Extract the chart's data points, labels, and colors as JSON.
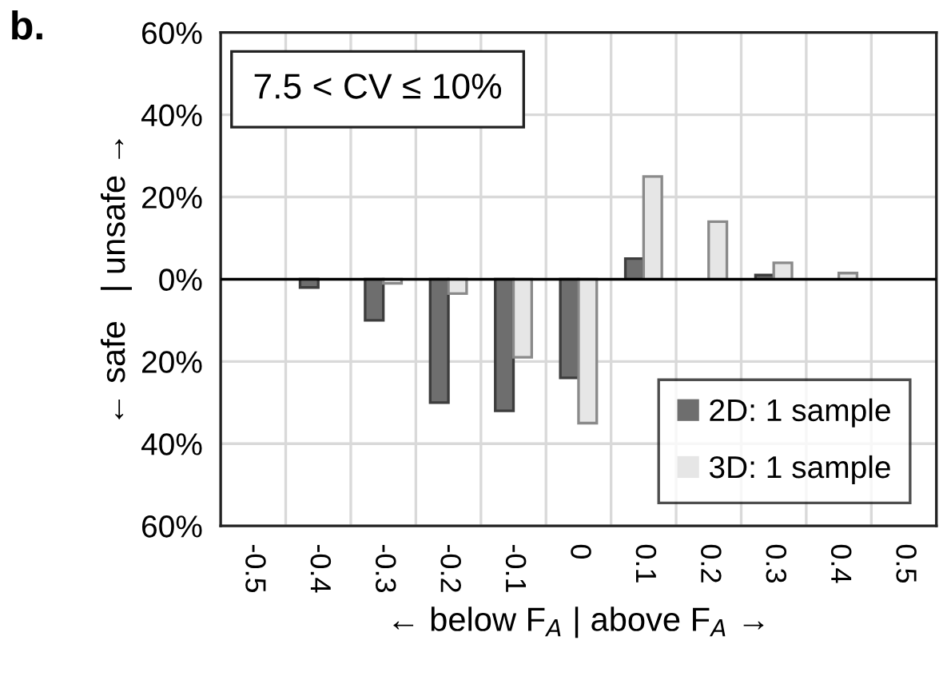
{
  "chart_data": {
    "type": "bar",
    "annotations": [
      "b.",
      "7.5 < CV ≤ 10%"
    ],
    "xlabel": "← below F$_{A}$ | above F$_{A}$ →",
    "ylabel": "← safe   | unsafe →",
    "categories": [
      "-0.5",
      "-0.4",
      "-0.3",
      "-0.2",
      "-0.1",
      "0",
      "0.1",
      "0.2",
      "0.3",
      "0.4",
      "0.5"
    ],
    "series": [
      {
        "name": "2D: 1 sample",
        "color": "#6e6e6e",
        "values": [
          0,
          -2,
          -10,
          -30,
          -32,
          -24,
          5,
          0,
          1,
          0,
          0
        ]
      },
      {
        "name": "3D: 1 sample",
        "color": "#e6e6e6",
        "values": [
          0,
          0,
          -1,
          -3.5,
          -19,
          -35,
          25,
          14,
          4,
          1.5,
          0
        ]
      }
    ],
    "ylim": [
      -60,
      60
    ],
    "yticks": [
      {
        "value": -60,
        "label": "60%"
      },
      {
        "value": -40,
        "label": "40%"
      },
      {
        "value": -20,
        "label": "20%"
      },
      {
        "value": 0,
        "label": "0%"
      },
      {
        "value": 20,
        "label": "20%"
      },
      {
        "value": 40,
        "label": "40%"
      },
      {
        "value": 60,
        "label": "60%"
      }
    ],
    "ref_lines": [
      {
        "axis": "y",
        "value": 0,
        "color": "#000000"
      }
    ],
    "grid": true,
    "legend": "bottom right"
  }
}
